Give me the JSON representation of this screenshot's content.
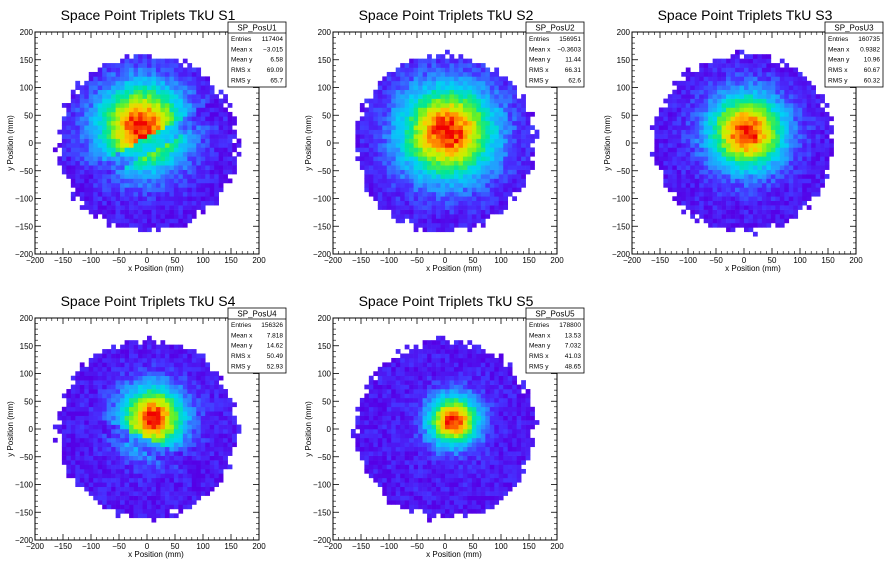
{
  "chart_data": [
    {
      "type": "heatmap",
      "title": "Space Point Triplets TkU S1",
      "xlabel": "x Position (mm)",
      "ylabel": "y Position (mm)",
      "xlim": [
        -200,
        200
      ],
      "ylim": [
        -200,
        200
      ],
      "xticks": [
        "−200",
        "−150",
        "−100",
        "−50",
        "0",
        "50",
        "100",
        "150",
        "200"
      ],
      "yticks": [
        "−200",
        "−150",
        "−100",
        "−50",
        "0",
        "50",
        "100",
        "150",
        "200"
      ],
      "stats": {
        "name": "SP_PosU1",
        "rows": [
          [
            "Entries",
            "117404"
          ],
          [
            "Mean x",
            "−3.015"
          ],
          [
            "Mean y",
            "6.58"
          ],
          [
            "RMS x",
            "69.09"
          ],
          [
            "RMS y",
            "65.7"
          ]
        ]
      },
      "peak": [
        -10,
        30
      ],
      "circle_radius": 160,
      "core_sigma": 55,
      "stripe": {
        "slope": 0.55,
        "intercept": -5,
        "width": 14
      }
    },
    {
      "type": "heatmap",
      "title": "Space Point Triplets TkU S2",
      "xlabel": "x Position (mm)",
      "ylabel": "y Position (mm)",
      "xlim": [
        -200,
        200
      ],
      "ylim": [
        -200,
        200
      ],
      "xticks": [
        "−200",
        "−150",
        "−100",
        "−50",
        "0",
        "50",
        "100",
        "150",
        "200"
      ],
      "yticks": [
        "−200",
        "−150",
        "−100",
        "−50",
        "0",
        "50",
        "100",
        "150",
        "200"
      ],
      "stats": {
        "name": "SP_PosU2",
        "rows": [
          [
            "Entries",
            "156951"
          ],
          [
            "Mean x",
            "−0.3603"
          ],
          [
            "Mean y",
            "11.44"
          ],
          [
            "RMS x",
            "66.31"
          ],
          [
            "RMS y",
            "62.6"
          ]
        ]
      },
      "peak": [
        5,
        20
      ],
      "circle_radius": 160,
      "core_sigma": 60
    },
    {
      "type": "heatmap",
      "title": "Space Point Triplets TkU S3",
      "xlabel": "x Position (mm)",
      "ylabel": "y Position (mm)",
      "xlim": [
        -200,
        200
      ],
      "ylim": [
        -200,
        200
      ],
      "xticks": [
        "−200",
        "−150",
        "−100",
        "−50",
        "0",
        "50",
        "100",
        "150",
        "200"
      ],
      "yticks": [
        "−200",
        "−150",
        "−100",
        "−50",
        "0",
        "50",
        "100",
        "150",
        "200"
      ],
      "stats": {
        "name": "SP_PosU3",
        "rows": [
          [
            "Entries",
            "160735"
          ],
          [
            "Mean x",
            "0.9382"
          ],
          [
            "Mean y",
            "10.96"
          ],
          [
            "RMS x",
            "60.67"
          ],
          [
            "RMS y",
            "60.32"
          ]
        ]
      },
      "peak": [
        5,
        20
      ],
      "circle_radius": 160,
      "core_sigma": 48
    },
    {
      "type": "heatmap",
      "title": "Space Point Triplets TkU S4",
      "xlabel": "x Position (mm)",
      "ylabel": "y Position (mm)",
      "xlim": [
        -200,
        200
      ],
      "ylim": [
        -200,
        200
      ],
      "xticks": [
        "−200",
        "−150",
        "−100",
        "−50",
        "0",
        "50",
        "100",
        "150",
        "200"
      ],
      "yticks": [
        "−200",
        "−150",
        "−100",
        "−50",
        "0",
        "50",
        "100",
        "150",
        "200"
      ],
      "stats": {
        "name": "SP_PosU4",
        "rows": [
          [
            "Entries",
            "156326"
          ],
          [
            "Mean x",
            "7.818"
          ],
          [
            "Mean y",
            "14.62"
          ],
          [
            "RMS x",
            "50.49"
          ],
          [
            "RMS y",
            "52.93"
          ]
        ]
      },
      "peak": [
        10,
        20
      ],
      "circle_radius": 160,
      "core_sigma": 40,
      "stripe": {
        "slope": -0.45,
        "intercept": -30,
        "width": 12
      }
    },
    {
      "type": "heatmap",
      "title": "Space Point Triplets TkU S5",
      "xlabel": "x Position (mm)",
      "ylabel": "y Position (mm)",
      "xlim": [
        -200,
        200
      ],
      "ylim": [
        -200,
        200
      ],
      "xticks": [
        "−200",
        "−150",
        "−100",
        "−50",
        "0",
        "50",
        "100",
        "150",
        "200"
      ],
      "yticks": [
        "−200",
        "−150",
        "−100",
        "−50",
        "0",
        "50",
        "100",
        "150",
        "200"
      ],
      "stats": {
        "name": "SP_PosU5",
        "rows": [
          [
            "Entries",
            "178800"
          ],
          [
            "Mean x",
            "13.53"
          ],
          [
            "Mean y",
            "7.032"
          ],
          [
            "RMS x",
            "41.03"
          ],
          [
            "RMS y",
            "48.65"
          ]
        ]
      },
      "peak": [
        15,
        15
      ],
      "circle_radius": 160,
      "core_sigma": 32
    }
  ]
}
